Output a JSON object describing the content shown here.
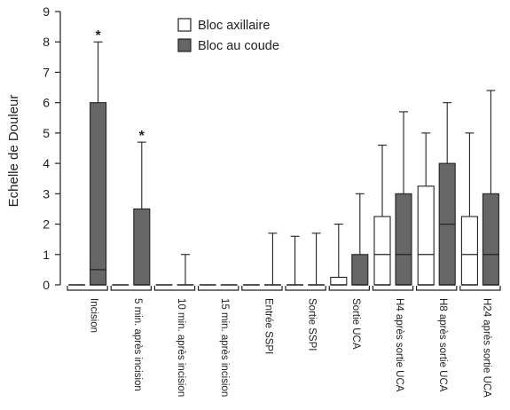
{
  "chart_data": {
    "type": "box",
    "ylabel": "Echelle de Douleur",
    "xlabel": "",
    "ylim": [
      0,
      9
    ],
    "yticks": [
      0,
      1,
      2,
      3,
      4,
      5,
      6,
      7,
      8,
      9
    ],
    "legend_position": "top-center",
    "categories": [
      "Incision",
      "5 min. après incision",
      "10 min. après incision",
      "15 min. après incision",
      "Entrée SSPI",
      "Sortie SSPI",
      "Sortie UCA",
      "H4 après sortie UCA",
      "H8 après sortie UCA",
      "H24 après sortie UCA"
    ],
    "series": [
      {
        "name": "Bloc axillaire",
        "color": "#ffffff",
        "boxes": [
          {
            "min": 0,
            "q1": 0,
            "median": 0,
            "q3": 0,
            "max": 0
          },
          {
            "min": 0,
            "q1": 0,
            "median": 0,
            "q3": 0,
            "max": 0
          },
          {
            "min": 0,
            "q1": 0,
            "median": 0,
            "q3": 0,
            "max": 0
          },
          {
            "min": 0,
            "q1": 0,
            "median": 0,
            "q3": 0,
            "max": 0
          },
          {
            "min": 0,
            "q1": 0,
            "median": 0,
            "q3": 0,
            "max": 0
          },
          {
            "min": 0,
            "q1": 0,
            "median": 0,
            "q3": 0,
            "max": 1.6
          },
          {
            "min": 0,
            "q1": 0,
            "median": 0,
            "q3": 0.25,
            "max": 2
          },
          {
            "min": 0,
            "q1": 0,
            "median": 1,
            "q3": 2.25,
            "max": 4.6
          },
          {
            "min": 0,
            "q1": 0,
            "median": 1,
            "q3": 3.25,
            "max": 5
          },
          {
            "min": 0,
            "q1": 0,
            "median": 1,
            "q3": 2.25,
            "max": 5
          }
        ]
      },
      {
        "name": "Bloc au coude",
        "color": "#666666",
        "boxes": [
          {
            "min": 0,
            "q1": 0,
            "median": 0.5,
            "q3": 6,
            "max": 8
          },
          {
            "min": 0,
            "q1": 0,
            "median": 0,
            "q3": 2.5,
            "max": 4.7
          },
          {
            "min": 0,
            "q1": 0,
            "median": 0,
            "q3": 0,
            "max": 1
          },
          {
            "min": 0,
            "q1": 0,
            "median": 0,
            "q3": 0,
            "max": 0
          },
          {
            "min": 0,
            "q1": 0,
            "median": 0,
            "q3": 0,
            "max": 1.7
          },
          {
            "min": 0,
            "q1": 0,
            "median": 0,
            "q3": 0,
            "max": 1.7
          },
          {
            "min": 0,
            "q1": 0,
            "median": 0,
            "q3": 1,
            "max": 3
          },
          {
            "min": 0,
            "q1": 0,
            "median": 1,
            "q3": 3,
            "max": 5.7
          },
          {
            "min": 0,
            "q1": 0,
            "median": 2,
            "q3": 4,
            "max": 6
          },
          {
            "min": 0,
            "q1": 0,
            "median": 1,
            "q3": 3,
            "max": 6.4
          }
        ]
      }
    ],
    "annotations": [
      {
        "category": "Incision",
        "series": "Bloc au coude",
        "text": "*"
      },
      {
        "category": "5 min. après incision",
        "series": "Bloc au coude",
        "text": "*"
      }
    ]
  }
}
